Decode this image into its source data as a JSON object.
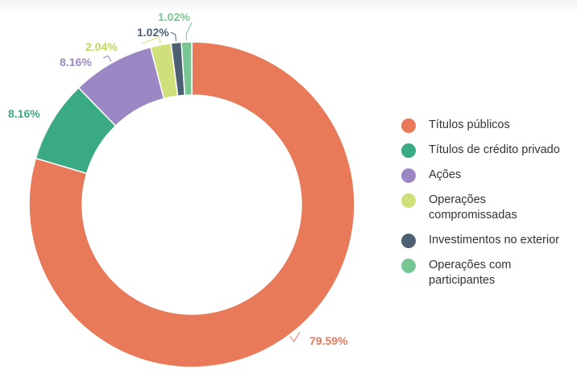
{
  "chart_data": {
    "type": "pie",
    "donut": true,
    "legend_position": "right",
    "categories": [
      "Títulos públicos",
      "Títulos de crédito privado",
      "Ações",
      "Operações compromissadas",
      "Investimentos no exterior",
      "Operações com participantes"
    ],
    "values": [
      79.59,
      8.16,
      8.16,
      2.04,
      1.02,
      1.02
    ],
    "data_labels": [
      "79.59%",
      "8.16%",
      "8.16%",
      "2.04%",
      "1.02%",
      "1.02%"
    ],
    "colors": [
      "#e87a5a",
      "#3aaa85",
      "#9b87c4",
      "#cfe07a",
      "#4d5f73",
      "#78c694"
    ]
  }
}
